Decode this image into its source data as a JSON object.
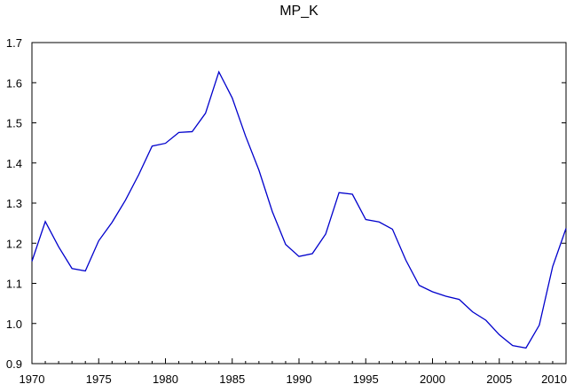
{
  "chart_data": {
    "type": "line",
    "title": "MP_K",
    "xlabel": "",
    "ylabel": "",
    "xlim": [
      1970,
      2010
    ],
    "ylim": [
      0.9,
      1.7
    ],
    "x_ticks": [
      1970,
      1975,
      1980,
      1985,
      1990,
      1995,
      2000,
      2005,
      2010
    ],
    "x_tick_labels": [
      "1970",
      "1975",
      "1980",
      "1985",
      "1990",
      "1995",
      "2000",
      "2005",
      "2010"
    ],
    "y_ticks": [
      0.9,
      1.0,
      1.1,
      1.2,
      1.3,
      1.4,
      1.5,
      1.6,
      1.7
    ],
    "y_tick_labels": [
      "0.9",
      "1.0",
      "1.1",
      "1.2",
      "1.3",
      "1.4",
      "1.5",
      "1.6",
      "1.7"
    ],
    "grid": false,
    "legend": "none",
    "line_color": "#0000cc",
    "series": [
      {
        "x": [
          1970,
          1971,
          1972,
          1973,
          1974,
          1975,
          1976,
          1977,
          1978,
          1979,
          1980,
          1981,
          1982,
          1983,
          1984,
          1985,
          1986,
          1987,
          1988,
          1989,
          1990,
          1991,
          1992,
          1993,
          1994,
          1995,
          1996,
          1997,
          1998,
          1999,
          2000,
          2001,
          2002,
          2003,
          2004,
          2005,
          2006,
          2007,
          2008,
          2009,
          2010
        ],
        "values": [
          1.155,
          1.254,
          1.191,
          1.137,
          1.131,
          1.206,
          1.252,
          1.307,
          1.371,
          1.442,
          1.449,
          1.476,
          1.478,
          1.524,
          1.627,
          1.562,
          1.467,
          1.382,
          1.279,
          1.197,
          1.167,
          1.174,
          1.223,
          1.326,
          1.322,
          1.259,
          1.253,
          1.235,
          1.158,
          1.095,
          1.079,
          1.068,
          1.06,
          1.029,
          1.008,
          0.972,
          0.945,
          0.939,
          0.996,
          1.142,
          1.237
        ]
      }
    ]
  }
}
